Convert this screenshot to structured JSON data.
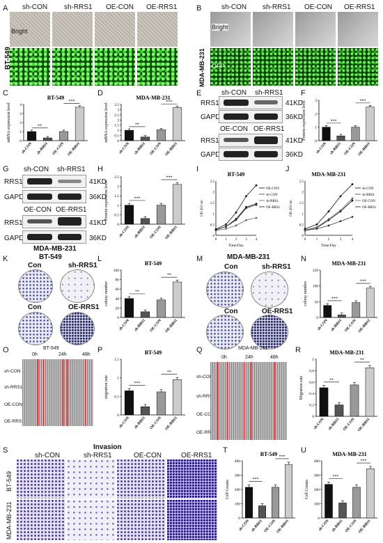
{
  "panels": {
    "A": "A",
    "B": "B",
    "C": "C",
    "D": "D",
    "E": "E",
    "F": "F",
    "G": "G",
    "H": "H",
    "I": "I",
    "J": "J",
    "K": "K",
    "L": "L",
    "M": "M",
    "N": "N",
    "O": "O",
    "P": "P",
    "Q": "Q",
    "R": "R",
    "S": "S",
    "T": "T",
    "U": "U"
  },
  "groups": [
    "sh-CON",
    "sh-RRS1",
    "OE-CON",
    "OE-RRS1"
  ],
  "cell_lines": {
    "bt": "BT-549",
    "mda": "MDA-MB-231"
  },
  "imaging": {
    "bright": "Bright",
    "gfp": "GFP"
  },
  "western": {
    "protein": "RRS1",
    "control": "GAPDH",
    "kd41": "41KD",
    "kd36": "36KD",
    "lanes_sh": [
      "sh-CON",
      "sh-RRS1"
    ],
    "lanes_oe": [
      "OE-CON",
      "OE-RRS1"
    ]
  },
  "colony": {
    "con": "Con",
    "sh": "sh-RRS1",
    "oe": "OE-RRS1"
  },
  "wound_times": [
    "0h",
    "24h",
    "48h"
  ],
  "invasion": {
    "title": "Invasion"
  },
  "stars": {
    "s2": "**",
    "s3": "***"
  },
  "chart_data": [
    {
      "id": "C",
      "type": "bar",
      "title": "BT-549",
      "ylabel": "mRNA expression level",
      "categories": [
        "sh-CON",
        "sh-RRS1",
        "OE-CON",
        "OE-RRS1"
      ],
      "values": [
        1.0,
        0.3,
        1.0,
        3.7
      ],
      "ylim": [
        0,
        4
      ],
      "yticks": [
        0,
        1,
        2,
        3,
        4
      ],
      "sig": [
        "**",
        "***"
      ]
    },
    {
      "id": "D",
      "type": "bar",
      "title": "MDA-MB-231",
      "ylabel": "mRNA expression level",
      "categories": [
        "sh-CON",
        "sh-RRS1",
        "OE-CON",
        "OE-RRS1"
      ],
      "values": [
        1.0,
        0.35,
        1.05,
        3.2
      ],
      "ylim": [
        0,
        3.5
      ],
      "yticks": [
        0,
        0.5,
        1.0,
        1.5,
        2.0,
        2.5,
        3.0,
        3.5
      ],
      "sig": [
        "**",
        "***"
      ]
    },
    {
      "id": "F",
      "type": "bar",
      "title": "",
      "ylabel": "Protein expression level",
      "categories": [
        "sh-CON",
        "sh-RRS1",
        "OE-CON",
        "OE-RRS1"
      ],
      "values": [
        1.0,
        0.35,
        1.0,
        2.5
      ],
      "ylim": [
        0,
        3
      ],
      "yticks": [
        0,
        1,
        2,
        3
      ],
      "sig": [
        "***",
        "***"
      ]
    },
    {
      "id": "H",
      "type": "bar",
      "title": "",
      "ylabel": "Protein expression level",
      "categories": [
        "sh-CON",
        "sh-RRS1",
        "OE-CON",
        "OE-RRS1"
      ],
      "values": [
        1.0,
        0.3,
        1.0,
        2.1
      ],
      "ylim": [
        0,
        2.5
      ],
      "yticks": [
        0,
        0.5,
        1.0,
        1.5,
        2.0,
        2.5
      ],
      "sig": [
        "***",
        "***"
      ]
    },
    {
      "id": "I",
      "type": "line",
      "title": "BT-549",
      "xlabel": "Time/Day",
      "ylabel": "OD 450 nm",
      "x": [
        0,
        1,
        2,
        3,
        4
      ],
      "ylim": [
        0,
        2.5
      ],
      "yticks": [
        0,
        0.5,
        1.0,
        1.5,
        2.0,
        2.5
      ],
      "series": [
        {
          "name": "OE-CON",
          "values": [
            0.25,
            0.4,
            0.75,
            1.3,
            1.45
          ]
        },
        {
          "name": "sh-CON",
          "values": [
            0.25,
            0.4,
            0.7,
            1.25,
            1.4
          ]
        },
        {
          "name": "sh-RRS1",
          "values": [
            0.22,
            0.3,
            0.45,
            0.7,
            0.8
          ]
        },
        {
          "name": "OE-RRS1",
          "values": [
            0.28,
            0.5,
            1.05,
            1.8,
            2.3
          ]
        }
      ]
    },
    {
      "id": "J",
      "type": "line",
      "title": "MDA-MB-231",
      "xlabel": "Time/Day",
      "ylabel": "OD 450 nm",
      "x": [
        0,
        1,
        2,
        3,
        4
      ],
      "ylim": [
        0,
        2.5
      ],
      "yticks": [
        0,
        0.5,
        1.0,
        1.5,
        2.0,
        2.5
      ],
      "series": [
        {
          "name": "sh-CON",
          "values": [
            0.25,
            0.35,
            0.7,
            1.1,
            1.6
          ]
        },
        {
          "name": "sh-RRS1",
          "values": [
            0.22,
            0.3,
            0.45,
            0.65,
            0.85
          ]
        },
        {
          "name": "OE-CON",
          "values": [
            0.25,
            0.37,
            0.75,
            1.15,
            1.7
          ]
        },
        {
          "name": "OE-RRS1",
          "values": [
            0.3,
            0.5,
            1.1,
            1.8,
            2.35
          ]
        }
      ]
    },
    {
      "id": "L",
      "type": "bar",
      "title": "BT-549",
      "ylabel": "colony number",
      "categories": [
        "sh-CON",
        "sh-RRS1",
        "OE-CON",
        "OE-RRS1"
      ],
      "values": [
        40,
        12,
        37,
        75
      ],
      "ylim": [
        0,
        100
      ],
      "yticks": [
        0,
        20,
        40,
        60,
        80,
        100
      ],
      "sig": [
        "**",
        "**"
      ]
    },
    {
      "id": "N",
      "type": "bar",
      "title": "MDA-MB-231",
      "ylabel": "colony number",
      "categories": [
        "sh-CON",
        "sh-RRS1",
        "OE-CON",
        "OE-RRS1"
      ],
      "values": [
        38,
        8,
        47,
        93
      ],
      "ylim": [
        0,
        150
      ],
      "yticks": [
        0,
        50,
        100,
        150
      ],
      "sig": [
        "***",
        "***"
      ]
    },
    {
      "id": "P",
      "type": "bar",
      "title": "BT-549",
      "ylabel": "migration rate",
      "categories": [
        "sh-CON",
        "sh-RRS1",
        "OE-CON",
        "OE-RRS1"
      ],
      "values": [
        0.65,
        0.22,
        0.62,
        0.95
      ],
      "ylim": [
        0,
        1.5
      ],
      "yticks": [
        0,
        0.5,
        1.0,
        1.5
      ],
      "sig": [
        "***",
        "**"
      ]
    },
    {
      "id": "R",
      "type": "bar",
      "title": "MDA-MB-231",
      "ylabel": "Migration rate",
      "categories": [
        "sh-CON",
        "sh-RRS1",
        "OE-CON",
        "OE-RRS1"
      ],
      "values": [
        0.5,
        0.2,
        0.55,
        0.85
      ],
      "ylim": [
        0,
        1.0
      ],
      "yticks": [
        0,
        0.2,
        0.4,
        0.6,
        0.8,
        1.0
      ],
      "sig": [
        "**",
        "**"
      ]
    },
    {
      "id": "T",
      "type": "bar",
      "title": "BT-549",
      "ylabel": "Cell Counts",
      "categories": [
        "sh-CON",
        "sh-RRS1",
        "OE-CON",
        "OE-RRS1"
      ],
      "values": [
        215,
        85,
        215,
        375
      ],
      "ylim": [
        0,
        400
      ],
      "yticks": [
        0,
        100,
        200,
        300,
        400
      ],
      "sig": [
        "***",
        "***"
      ]
    },
    {
      "id": "U",
      "type": "bar",
      "title": "MDA-MB-231",
      "ylabel": "Cell Counts",
      "categories": [
        "sh-CON",
        "sh-RRS1",
        "OE-CON",
        "OE-RRS1"
      ],
      "values": [
        235,
        105,
        215,
        345
      ],
      "ylim": [
        0,
        400
      ],
      "yticks": [
        0,
        100,
        200,
        300,
        400
      ],
      "sig": [
        "***",
        "***"
      ]
    }
  ]
}
